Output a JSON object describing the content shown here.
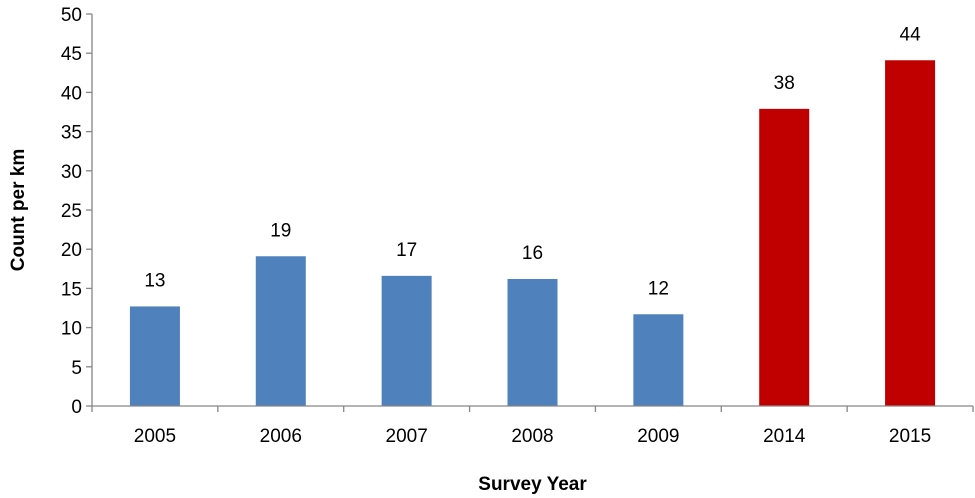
{
  "chart_data": {
    "type": "bar",
    "categories": [
      "2005",
      "2006",
      "2007",
      "2008",
      "2009",
      "2014",
      "2015"
    ],
    "values": [
      12.7,
      19.1,
      16.6,
      16.2,
      11.7,
      37.9,
      44.1
    ],
    "data_labels": [
      "13",
      "19",
      "17",
      "16",
      "12",
      "38",
      "44"
    ],
    "bar_colors": [
      "#4F81BD",
      "#4F81BD",
      "#4F81BD",
      "#4F81BD",
      "#4F81BD",
      "#C00000",
      "#C00000"
    ],
    "xlabel": "Survey Year",
    "ylabel": "Count per km",
    "ylim": [
      0,
      50
    ],
    "yticks": [
      0,
      5,
      10,
      15,
      20,
      25,
      30,
      35,
      40,
      45,
      50
    ],
    "grid": false,
    "legend": "none"
  }
}
